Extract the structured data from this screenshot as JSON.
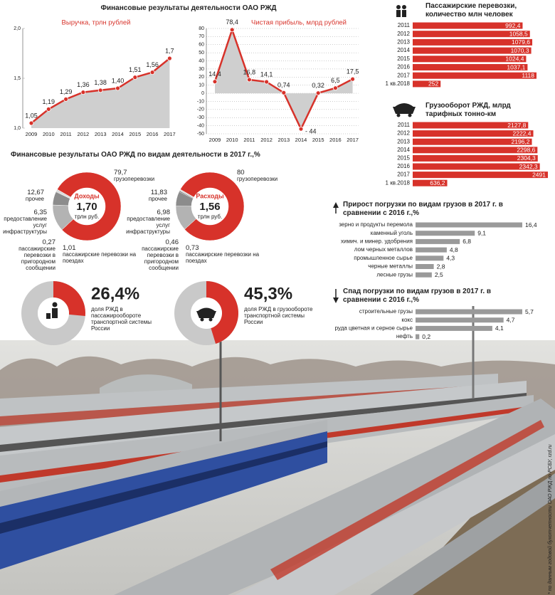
{
  "headers": {
    "main": "Финансовые результаты деятельности ОАО РЖД",
    "by_activity": "Финансовые результаты ОАО РЖД по видам деятельности в 2017 г.,%"
  },
  "source": "* по данным годовой бухотчетности ОАО РЖД по РСБУ, rzd.ru",
  "chart_data": [
    {
      "type": "line",
      "title": "Выручка, трлн рублей",
      "categories": [
        "2009",
        "2010",
        "2011",
        "2012",
        "2013",
        "2014",
        "2015",
        "2016",
        "2017"
      ],
      "values": [
        1.05,
        1.19,
        1.29,
        1.36,
        1.38,
        1.4,
        1.51,
        1.56,
        1.7
      ],
      "value_labels": [
        "1,05",
        "1,19",
        "1,29",
        "1,36",
        "1,38",
        "1,40",
        "1,51",
        "1,56",
        "1,7"
      ],
      "color": "#d7322a",
      "area_color": "#cfcfcf",
      "grid": false,
      "ylim": [
        1,
        2
      ],
      "yticks": [
        {
          "value": 1,
          "label": "1,0"
        },
        {
          "value": 1.5,
          "label": "1,5"
        },
        {
          "value": 2,
          "label": "2,0"
        }
      ]
    },
    {
      "type": "line",
      "title": "Чистая прибыль, млрд рублей",
      "categories": [
        "2009",
        "2010",
        "2011",
        "2012",
        "2013",
        "2014",
        "2015",
        "2016",
        "2017"
      ],
      "values": [
        14.4,
        78.4,
        16.8,
        14.1,
        0.74,
        -44,
        0.32,
        6.5,
        17.5
      ],
      "value_labels": [
        "14,4",
        "78,4",
        "16,8",
        "14,1",
        "0,74",
        "- 44",
        "0,32",
        "6,5",
        "17,5"
      ],
      "color": "#d7322a",
      "area_color": "#cfcfcf",
      "grid": true,
      "ylim": [
        -50,
        80
      ],
      "yticks": [
        -50,
        -40,
        -30,
        -20,
        -10,
        0,
        10,
        20,
        30,
        40,
        50,
        60,
        70,
        80
      ]
    },
    {
      "type": "donut",
      "title": "Доходы",
      "total": "1,70",
      "unit": "трлн руб.",
      "categories": [
        "грузоперевозки",
        "прочее",
        "предоставление услуг инфраструктуры",
        "пассажирские перевозки в пригородном сообщении",
        "пассажирские перевозки на поездах"
      ],
      "values": [
        79.7,
        12.67,
        6.35,
        0.27,
        1.01
      ],
      "value_labels": [
        "79,7",
        "12,67",
        "6,35",
        "0,27",
        "1,01"
      ],
      "colors": [
        "#d7322a",
        "#b3b3b3",
        "#8c8c8c",
        "#555555",
        "#d9d9d9"
      ]
    },
    {
      "type": "donut",
      "title": "Расходы",
      "total": "1,56",
      "unit": "трлн руб.",
      "categories": [
        "грузоперевозки",
        "прочее",
        "предоставление услуг инфраструктуры",
        "пассажирские перевозки в пригородном сообщении",
        "пассажирские перевозки на поездах"
      ],
      "values": [
        80,
        11.83,
        6.98,
        0.46,
        0.73
      ],
      "value_labels": [
        "80",
        "11,83",
        "6,98",
        "0,46",
        "0,73"
      ],
      "colors": [
        "#d7322a",
        "#b3b3b3",
        "#8c8c8c",
        "#555555",
        "#d9d9d9"
      ]
    },
    {
      "type": "share",
      "title": "доля РЖД в пассажирообороте транспортной системы России",
      "values": [
        26.4
      ],
      "value_labels": [
        "26,4%"
      ],
      "color": "#d7322a",
      "rest_color": "#c9c9c9"
    },
    {
      "type": "share",
      "title": "доля РЖД в грузообороте транспортной системы России",
      "values": [
        45.3
      ],
      "value_labels": [
        "45,3%"
      ],
      "color": "#d7322a",
      "rest_color": "#c9c9c9"
    },
    {
      "type": "hbar",
      "title": "Пассажирские перевозки, количество млн человек",
      "categories": [
        "2011",
        "2012",
        "2013",
        "2014",
        "2015",
        "2016",
        "2017",
        "1 кв.2018"
      ],
      "values": [
        992.4,
        1058.5,
        1079.6,
        1070.3,
        1024.4,
        1037.1,
        1118,
        252
      ],
      "value_labels": [
        "992,4",
        "1058,5",
        "1079,6",
        "1070,3",
        "1024,4",
        "1037,1",
        "1118",
        "252"
      ],
      "color": "#d7322a"
    },
    {
      "type": "hbar",
      "title": "Грузооборот РЖД, млрд тарифных тонно-км",
      "categories": [
        "2011",
        "2012",
        "2013",
        "2014",
        "2015",
        "2016",
        "2017",
        "1 кв.2018"
      ],
      "values": [
        2127.8,
        2222.4,
        2196.2,
        2298.6,
        2304.3,
        2342.3,
        2491,
        636.2
      ],
      "value_labels": [
        "2127,8",
        "2222,4",
        "2196,2",
        "2298,6",
        "2304,3",
        "2342,3",
        "2491",
        "636,2"
      ],
      "color": "#d7322a"
    },
    {
      "type": "hbar",
      "title": "Прирост погрузки по видам грузов в 2017 г. в сравнении с 2016 г.,%",
      "categories": [
        "зерно и продукты перемола",
        "каменный уголь",
        "химич. и минер. удобрения",
        "лом черных металлов",
        "промышленное сырье",
        "черные металлы",
        "лесные грузы"
      ],
      "values": [
        16.4,
        9.1,
        6.8,
        4.8,
        4.3,
        2.8,
        2.5
      ],
      "value_labels": [
        "16,4",
        "9,1",
        "6,8",
        "4,8",
        "4,3",
        "2,8",
        "2,5"
      ],
      "color": "#9a9a9a"
    },
    {
      "type": "hbar",
      "title": "Спад погрузки по видам грузов в 2017 г. в сравнении с 2016 г.,%",
      "categories": [
        "строительные грузы",
        "кокс",
        "руда цветная и серное сырье",
        "нефть"
      ],
      "values": [
        5.7,
        4.7,
        4.1,
        0.2
      ],
      "value_labels": [
        "5,7",
        "4,7",
        "4,1",
        "0,2"
      ],
      "color": "#9a9a9a"
    }
  ]
}
